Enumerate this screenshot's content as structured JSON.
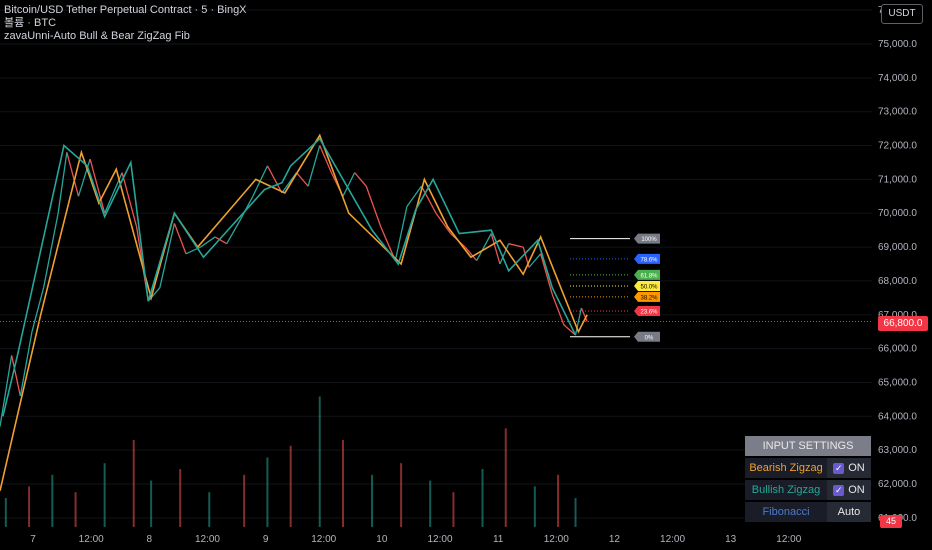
{
  "legend": {
    "symbol": "Bitcoin/USD Tether Perpetual Contract · 5 · BingX",
    "volume": "볼륨 · BTC",
    "indicator": "zavaUnni-Auto Bull & Bear ZigZag Fib"
  },
  "toolbar": {
    "currency_label": "USDT"
  },
  "price_tag": "66,800.0",
  "volume_tag": "45",
  "settings": {
    "header": "INPUT SETTINGS",
    "rows": [
      {
        "label": "Bearish Zigzag",
        "value": "ON",
        "color": "#f0a030"
      },
      {
        "label": "Bullish Zigzag",
        "value": "ON",
        "color": "#26a69a"
      },
      {
        "label": "Fibonacci",
        "value": "Auto",
        "color": "#4a7bd0"
      }
    ]
  },
  "chart_data": {
    "type": "line",
    "title": "Bitcoin/USD Tether Perpetual Contract · 5 · BingX",
    "y_axis": {
      "ticks": [
        "61,000.0",
        "62,000.0",
        "63,000.0",
        "64,000.0",
        "65,000.0",
        "66,000.0",
        "67,000.0",
        "68,000.0",
        "69,000.0",
        "70,000.0",
        "71,000.0",
        "72,000.0",
        "73,000.0",
        "74,000.0",
        "75,000.0",
        "76,000.0"
      ],
      "ylim": [
        60700,
        76300
      ]
    },
    "x_axis": {
      "ticks": [
        "7",
        "12:00",
        "8",
        "12:00",
        "9",
        "12:00",
        "10",
        "12:00",
        "11",
        "12:00",
        "12",
        "12:00",
        "13",
        "12:00"
      ],
      "xlim": [
        0,
        15
      ]
    },
    "price_series": [
      [
        0.0,
        63700
      ],
      [
        0.2,
        65800
      ],
      [
        0.35,
        64600
      ],
      [
        0.55,
        66500
      ],
      [
        0.75,
        67800
      ],
      [
        1.0,
        70000
      ],
      [
        1.15,
        71800
      ],
      [
        1.35,
        70500
      ],
      [
        1.55,
        71600
      ],
      [
        1.8,
        70000
      ],
      [
        2.1,
        71200
      ],
      [
        2.35,
        69600
      ],
      [
        2.55,
        67400
      ],
      [
        2.75,
        67800
      ],
      [
        3.0,
        69700
      ],
      [
        3.2,
        68800
      ],
      [
        3.45,
        69000
      ],
      [
        3.7,
        69300
      ],
      [
        3.9,
        69100
      ],
      [
        4.1,
        69700
      ],
      [
        4.35,
        70500
      ],
      [
        4.6,
        71400
      ],
      [
        4.85,
        70600
      ],
      [
        5.1,
        71200
      ],
      [
        5.3,
        70800
      ],
      [
        5.5,
        72000
      ],
      [
        5.7,
        71200
      ],
      [
        5.9,
        70500
      ],
      [
        6.1,
        71200
      ],
      [
        6.3,
        70800
      ],
      [
        6.55,
        69600
      ],
      [
        6.8,
        68600
      ],
      [
        7.0,
        70200
      ],
      [
        7.25,
        70800
      ],
      [
        7.5,
        70000
      ],
      [
        7.75,
        69400
      ],
      [
        8.0,
        69000
      ],
      [
        8.2,
        68600
      ],
      [
        8.45,
        69400
      ],
      [
        8.6,
        68500
      ],
      [
        8.75,
        69100
      ],
      [
        9.0,
        69000
      ],
      [
        9.1,
        68400
      ],
      [
        9.3,
        68800
      ],
      [
        9.5,
        67600
      ],
      [
        9.7,
        66700
      ],
      [
        9.9,
        66400
      ],
      [
        10.0,
        67200
      ],
      [
        10.1,
        66800
      ]
    ],
    "bullish_zigzag": [
      [
        0.05,
        64000
      ],
      [
        0.3,
        65800
      ],
      [
        1.1,
        72000
      ],
      [
        1.5,
        71400
      ],
      [
        1.8,
        69900
      ],
      [
        2.25,
        71500
      ],
      [
        2.55,
        67400
      ],
      [
        3.0,
        70000
      ],
      [
        3.5,
        68700
      ],
      [
        4.55,
        70700
      ],
      [
        4.85,
        70900
      ],
      [
        5.0,
        71400
      ],
      [
        5.5,
        72200
      ],
      [
        6.4,
        69500
      ],
      [
        6.85,
        68500
      ],
      [
        7.15,
        70100
      ],
      [
        7.45,
        71000
      ],
      [
        7.9,
        69400
      ],
      [
        8.45,
        69500
      ],
      [
        8.75,
        68300
      ],
      [
        9.25,
        69200
      ],
      [
        9.5,
        67800
      ],
      [
        9.9,
        66400
      ]
    ],
    "bearish_zigzag": [
      [
        0.0,
        61800
      ],
      [
        0.7,
        67000
      ],
      [
        1.4,
        71800
      ],
      [
        1.7,
        70300
      ],
      [
        2.0,
        71300
      ],
      [
        2.6,
        67500
      ],
      [
        3.0,
        70000
      ],
      [
        3.4,
        69000
      ],
      [
        4.4,
        71000
      ],
      [
        4.9,
        70600
      ],
      [
        5.5,
        72300
      ],
      [
        6.0,
        70000
      ],
      [
        6.9,
        68500
      ],
      [
        7.3,
        71000
      ],
      [
        7.7,
        69600
      ],
      [
        8.1,
        68700
      ],
      [
        8.6,
        69200
      ],
      [
        9.0,
        68200
      ],
      [
        9.3,
        69300
      ],
      [
        9.6,
        68000
      ],
      [
        9.95,
        66500
      ],
      [
        10.1,
        67000
      ]
    ],
    "volume_spikes": [
      [
        0.1,
        10
      ],
      [
        0.5,
        14
      ],
      [
        0.9,
        18
      ],
      [
        1.3,
        12
      ],
      [
        1.8,
        22
      ],
      [
        2.3,
        30
      ],
      [
        2.6,
        16
      ],
      [
        3.1,
        20
      ],
      [
        3.6,
        12
      ],
      [
        4.2,
        18
      ],
      [
        4.6,
        24
      ],
      [
        5.0,
        28
      ],
      [
        5.5,
        45
      ],
      [
        5.9,
        30
      ],
      [
        6.4,
        18
      ],
      [
        6.9,
        22
      ],
      [
        7.4,
        16
      ],
      [
        7.8,
        12
      ],
      [
        8.3,
        20
      ],
      [
        8.7,
        34
      ],
      [
        9.2,
        14
      ],
      [
        9.6,
        18
      ],
      [
        9.9,
        10
      ]
    ],
    "current_price": 66800,
    "current_volume": 45,
    "fib_levels": [
      {
        "label": "100%",
        "price": 69250,
        "color": "#ffffff",
        "tag_color": "#787b86"
      },
      {
        "label": "78.6%",
        "price": 68650,
        "color": "#2962ff",
        "tag_color": "#2962ff"
      },
      {
        "label": "61.8%",
        "price": 68180,
        "color": "#4caf50",
        "tag_color": "#4caf50"
      },
      {
        "label": "50.0%",
        "price": 67850,
        "color": "#ffeb3b",
        "tag_color": "#ffeb3b"
      },
      {
        "label": "38.2%",
        "price": 67530,
        "color": "#ff9800",
        "tag_color": "#ff9800"
      },
      {
        "label": "23.6%",
        "price": 67110,
        "color": "#f23645",
        "tag_color": "#f23645"
      },
      {
        "label": "0%",
        "price": 66350,
        "color": "#ffffff",
        "tag_color": "#787b86"
      }
    ],
    "colors": {
      "bullish": "#26a69a",
      "bearish": "#f0a030",
      "up": "#26a69a",
      "down": "#ef5350",
      "axis_text": "#b2b5be"
    }
  }
}
